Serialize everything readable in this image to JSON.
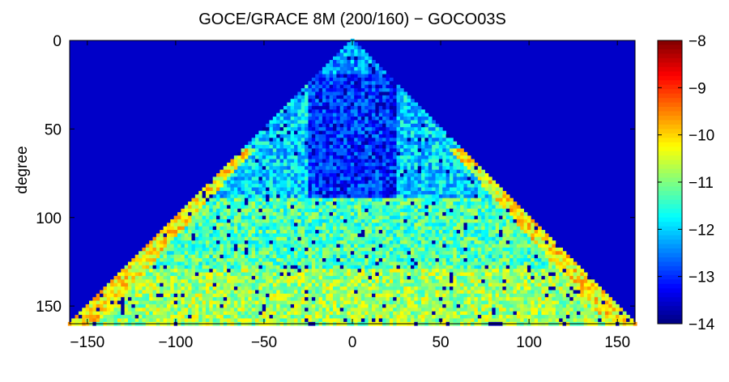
{
  "figure": {
    "title": "GOCE/GRACE 8M (200/160) − GOCO03S"
  },
  "chart_data": {
    "type": "heatmap",
    "title": "GOCE/GRACE 8M (200/160) − GOCO03S",
    "xlabel": "",
    "ylabel": "degree",
    "xlim": [
      -160,
      160
    ],
    "ylim": [
      160,
      0
    ],
    "x_ticks": [
      -150,
      -100,
      -50,
      0,
      50,
      100,
      150
    ],
    "x_tick_labels": [
      "−150",
      "−100",
      "−50",
      "0",
      "50",
      "100",
      "150"
    ],
    "y_ticks": [
      0,
      50,
      100,
      150
    ],
    "y_tick_labels": [
      "0",
      "50",
      "100",
      "150"
    ],
    "colormap": "jet",
    "background_color": "#0000c8",
    "colorbar": {
      "range": [
        -14,
        -8
      ],
      "ticks": [
        -14,
        -13,
        -12,
        -11,
        -10,
        -9,
        -8
      ],
      "tick_labels": [
        "−14",
        "−13",
        "−12",
        "−11",
        "−10",
        "−9",
        "−8"
      ]
    },
    "description_value_levels": {
      "apex_degree_0_to_20": -12.3,
      "low_degree_center_20_to_90": -13.0,
      "mid_degree_90_to_130": -11.3,
      "high_degree_130_to_160": -10.8,
      "edge_near_abs_order_150": -10.2
    }
  }
}
